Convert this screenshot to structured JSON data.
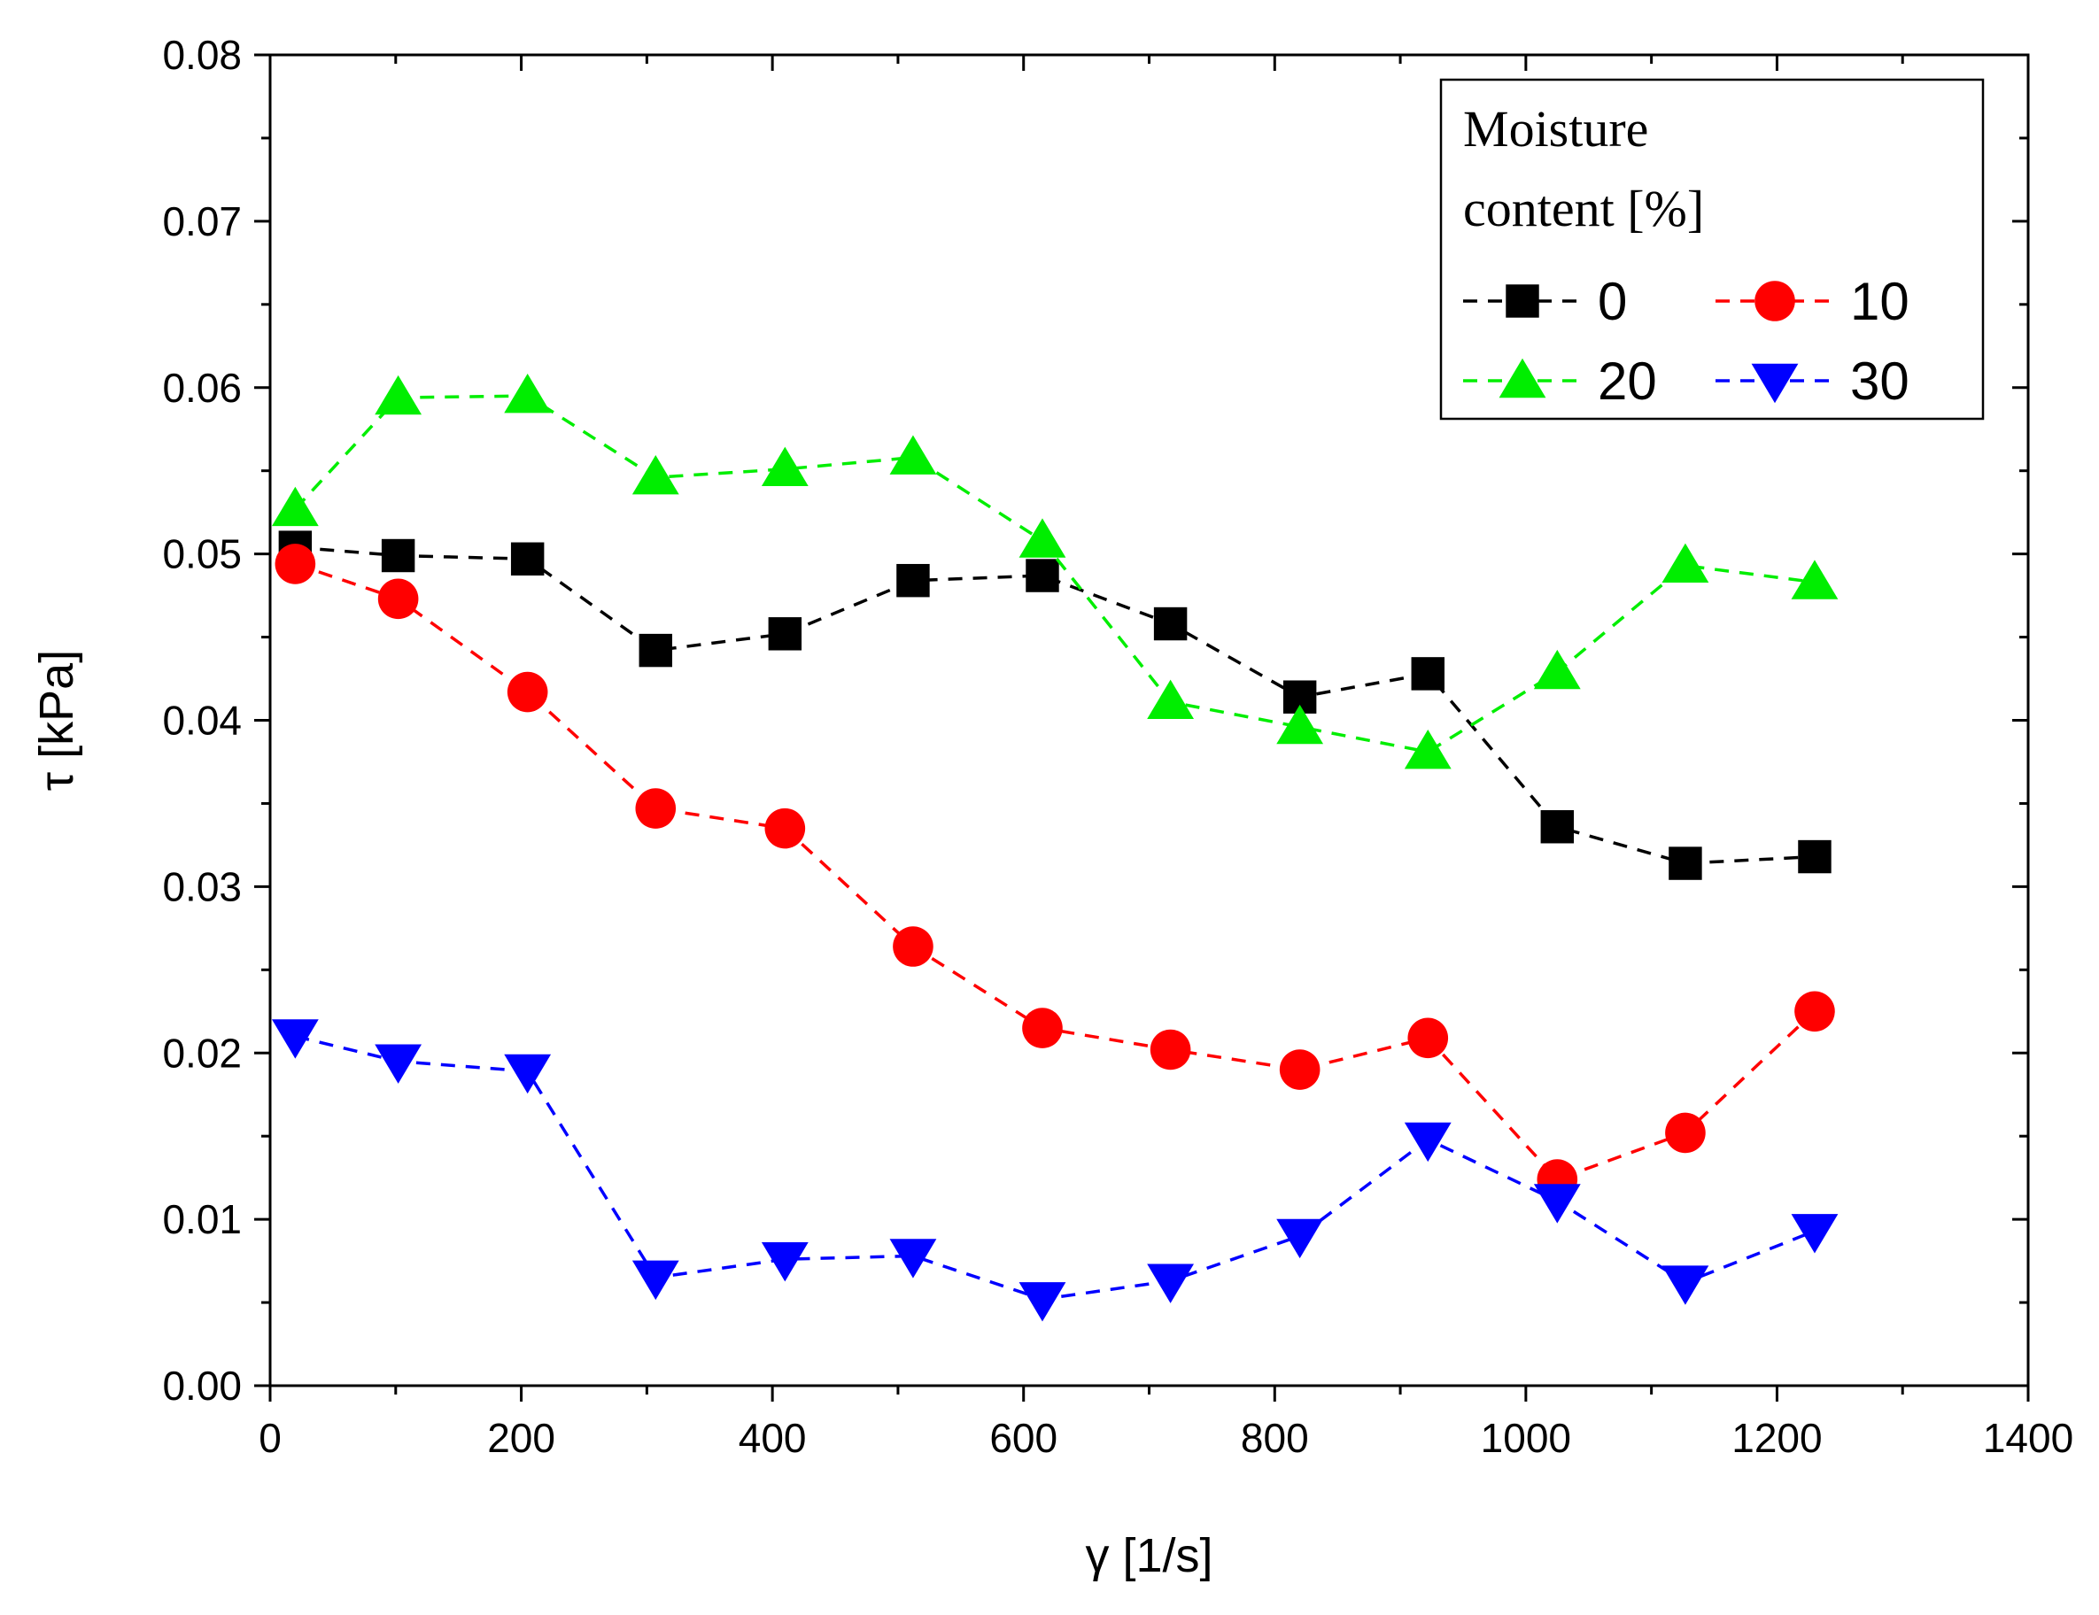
{
  "chart_data": {
    "type": "line",
    "title": "",
    "xlabel": "γ [1/s]",
    "ylabel": "τ [kPa]",
    "xlim": [
      0,
      1400
    ],
    "ylim": [
      0,
      0.08
    ],
    "xticks": [
      0,
      200,
      400,
      600,
      800,
      1000,
      1200,
      1400
    ],
    "xtick_labels": [
      "0",
      "200",
      "400",
      "600",
      "800",
      "1000",
      "1200",
      "1400"
    ],
    "yticks": [
      0,
      0.01,
      0.02,
      0.03,
      0.04,
      0.05,
      0.06,
      0.07,
      0.08
    ],
    "ytick_labels": [
      "0.00",
      "0.01",
      "0.02",
      "0.03",
      "0.04",
      "0.05",
      "0.06",
      "0.07",
      "0.08"
    ],
    "grid": false,
    "legend": {
      "title_line1": "Moisture",
      "title_line2": "content [%]",
      "placement": "top-right"
    },
    "x": [
      20,
      102,
      205,
      307,
      410,
      512,
      615,
      717,
      820,
      922,
      1025,
      1127,
      1230
    ],
    "series": [
      {
        "name": "0",
        "color": "#000000",
        "marker": "square",
        "values": [
          0.0504,
          0.0499,
          0.0497,
          0.0442,
          0.0452,
          0.0484,
          0.0487,
          0.0458,
          0.0414,
          0.0428,
          0.0336,
          0.0314,
          0.0318
        ]
      },
      {
        "name": "10",
        "color": "#ff0000",
        "marker": "circle",
        "values": [
          0.0494,
          0.0473,
          0.0417,
          0.0347,
          0.0335,
          0.0264,
          0.0215,
          0.0202,
          0.019,
          0.0209,
          0.0124,
          0.0152,
          0.0225
        ]
      },
      {
        "name": "20",
        "color": "#00ee00",
        "marker": "triangle-up",
        "values": [
          0.0527,
          0.0594,
          0.0595,
          0.0546,
          0.0551,
          0.0558,
          0.0508,
          0.0411,
          0.0396,
          0.0381,
          0.0429,
          0.0493,
          0.0483
        ]
      },
      {
        "name": "30",
        "color": "#0000ff",
        "marker": "triangle-down",
        "values": [
          0.021,
          0.0195,
          0.0189,
          0.0065,
          0.0076,
          0.0078,
          0.0052,
          0.0063,
          0.009,
          0.0148,
          0.0111,
          0.0062,
          0.0093
        ]
      }
    ]
  }
}
